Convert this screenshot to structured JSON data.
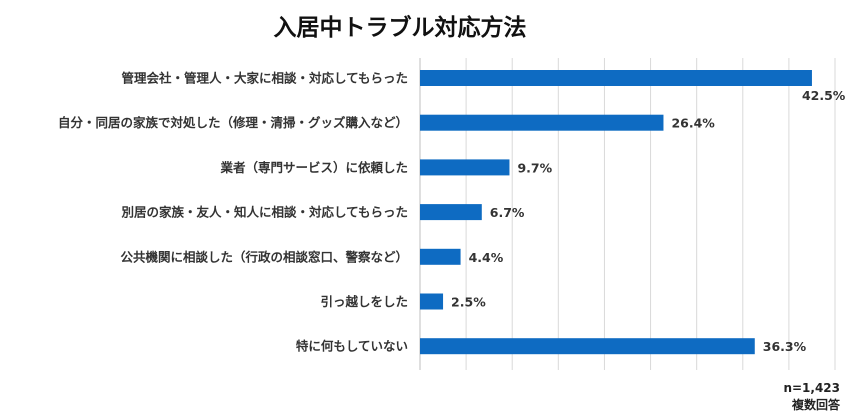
{
  "chart_data": {
    "type": "bar",
    "orientation": "horizontal",
    "title": "入居中トラブル対応方法",
    "categories": [
      "管理会社・管理人・大家に相談・対応してもらった",
      "自分・同居の家族で対処した（修理・清掃・グッズ購入など）",
      "業者（専門サービス）に依頼した",
      "別居の家族・友人・知人に相談・対応してもらった",
      "公共機関に相談した（行政の相談窓口、警察など）",
      "引っ越しをした",
      "特に何もしていない"
    ],
    "values": [
      42.5,
      26.4,
      9.7,
      6.7,
      4.4,
      2.5,
      36.3
    ],
    "value_labels": [
      "42.5%",
      "26.4%",
      "9.7%",
      "6.7%",
      "4.4%",
      "2.5%",
      "36.3%"
    ],
    "xlim": [
      0,
      45
    ],
    "grid": true,
    "bar_color": "#0e6bc2",
    "grid_color": "#d9d9d9"
  },
  "footnote": {
    "sample": "n=1,423",
    "note": "複数回答"
  }
}
